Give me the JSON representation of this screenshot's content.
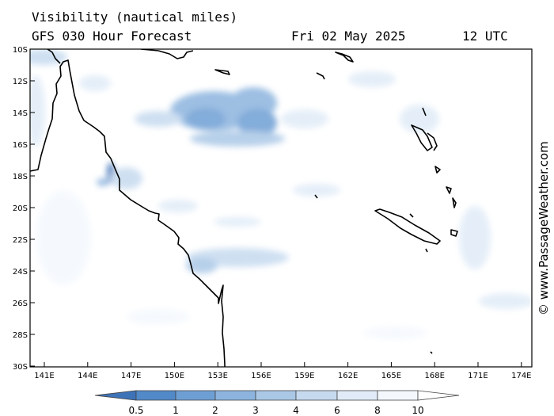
{
  "header": {
    "title": "Visibility (nautical miles)",
    "subtitle": "GFS 030 Hour Forecast",
    "date": "Fri 02 May 2025",
    "time": "12 UTC"
  },
  "axes": {
    "y_labels": [
      "10S",
      "12S",
      "14S",
      "16S",
      "18S",
      "20S",
      "22S",
      "24S",
      "26S",
      "28S",
      "30S"
    ],
    "x_labels": [
      "141E",
      "144E",
      "147E",
      "150E",
      "153E",
      "156E",
      "159E",
      "162E",
      "165E",
      "168E",
      "171E",
      "174E"
    ]
  },
  "legend": {
    "labels": [
      "0.5",
      "1",
      "2",
      "3",
      "4",
      "6",
      "8",
      "10"
    ],
    "colors": [
      "#3e73b8",
      "#5289c8",
      "#6e9fd4",
      "#8cb4de",
      "#aac8e6",
      "#c6daef",
      "#e0ebf7",
      "#f4f8fd"
    ]
  },
  "credit": "© www.PassageWeather.com",
  "colors": {
    "coast": "#000000",
    "fog": "#6e9fd4"
  }
}
